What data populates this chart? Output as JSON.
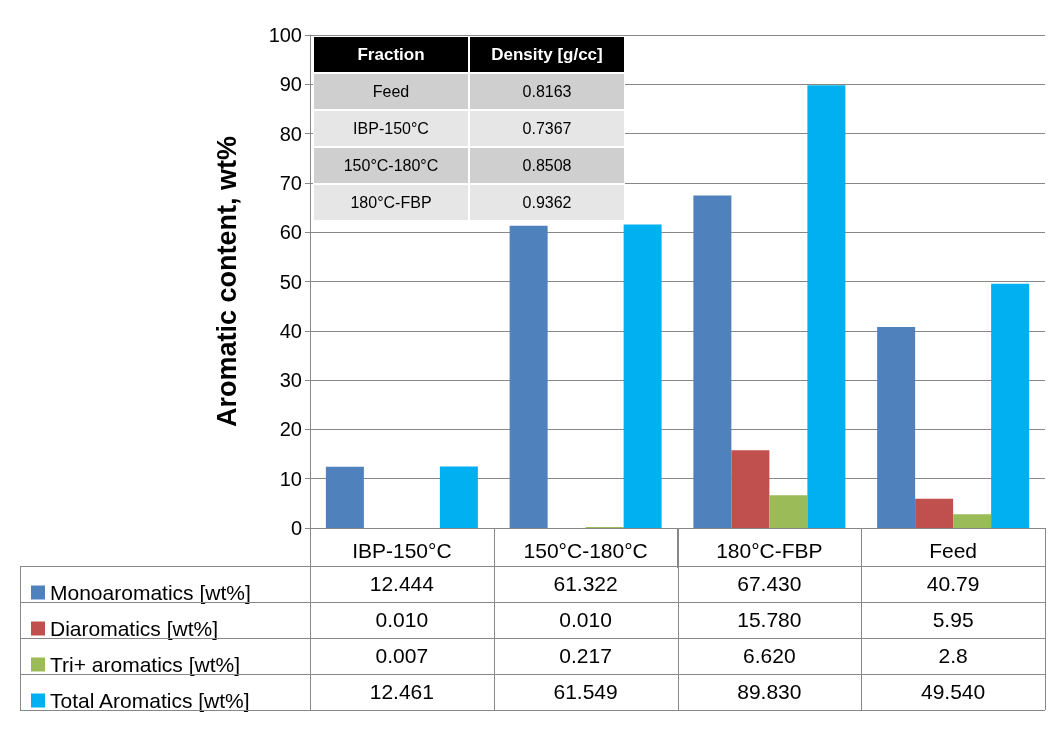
{
  "chart_data": [
    {
      "type": "bar",
      "ylabel": "Aromatic content, wt%",
      "categories": [
        "IBP-150°C",
        "150°C-180°C",
        "180°C-FBP",
        "Feed"
      ],
      "series": [
        {
          "name": "Monoaromatics [wt%]",
          "color": "#4f81bd",
          "values": [
            12.444,
            61.322,
            67.43,
            40.79
          ],
          "value_labels": [
            "12.444",
            "61.322",
            "67.430",
            "40.79"
          ]
        },
        {
          "name": "Diaromatics [wt%]",
          "color": "#c0504d",
          "values": [
            0.01,
            0.01,
            15.78,
            5.95
          ],
          "value_labels": [
            "0.010",
            "0.010",
            "15.780",
            "5.95"
          ]
        },
        {
          "name": "Tri+ aromatics [wt%]",
          "color": "#9bbb59",
          "values": [
            0.007,
            0.217,
            6.62,
            2.8
          ],
          "value_labels": [
            "0.007",
            "0.217",
            "6.620",
            "2.8"
          ]
        },
        {
          "name": "Total Aromatics [wt%]",
          "color": "#00b0f0",
          "values": [
            12.461,
            61.549,
            89.83,
            49.54
          ],
          "value_labels": [
            "12.461",
            "61.549",
            "89.830",
            "49.540"
          ]
        }
      ],
      "ylim": [
        0,
        100
      ],
      "yticks": [
        0,
        10,
        20,
        30,
        40,
        50,
        60,
        70,
        80,
        90,
        100
      ],
      "grid": "y",
      "legend": "bottom left"
    },
    {
      "type": "other",
      "categories": [
        "Feed",
        "IBP-150°C",
        "150°C-180°C",
        "180°C-FBP"
      ],
      "values": [
        0.8163,
        0.7367,
        0.8508,
        0.9362
      ],
      "data_labels": true,
      "annotations": [
        "Fraction",
        "Density [g/cc]"
      ]
    }
  ]
}
